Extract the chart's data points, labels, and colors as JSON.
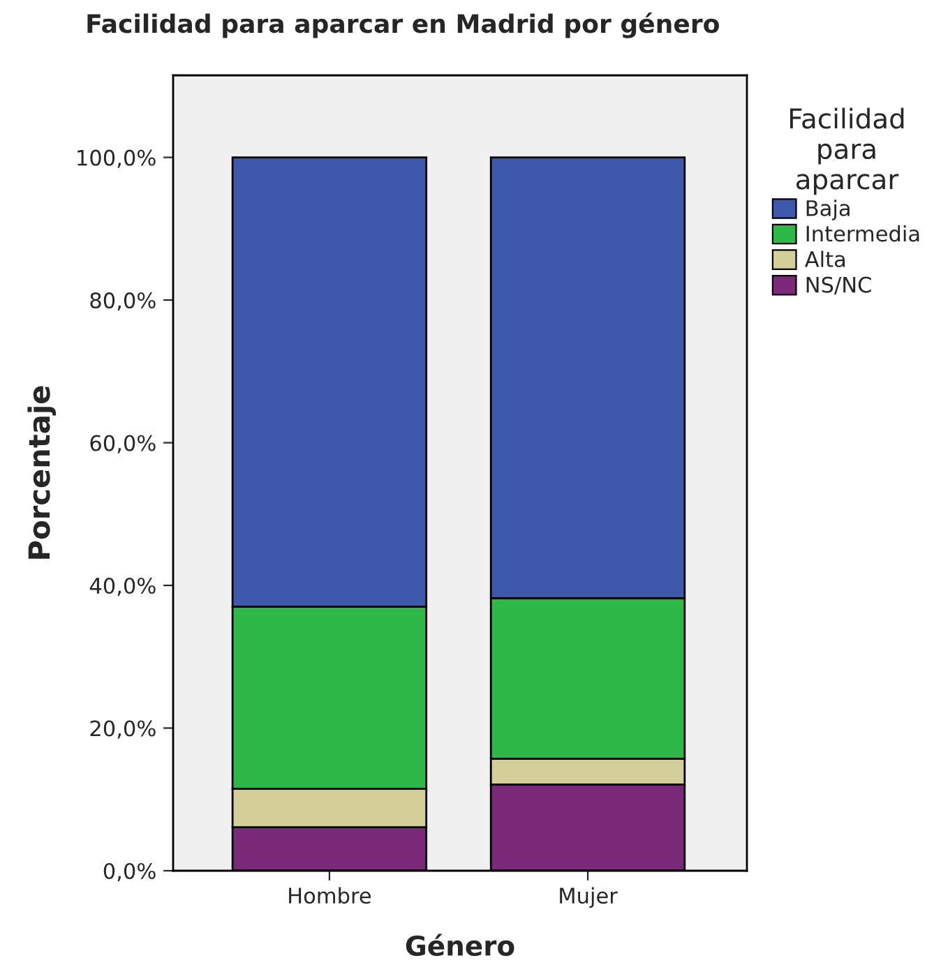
{
  "chart_data": {
    "type": "bar",
    "title": "Facilidad para aparcar en Madrid por género",
    "xlabel": "Género",
    "ylabel": "Porcentaje",
    "legend_title": "Facilidad\npara\naparcar",
    "categories": [
      "Hombre",
      "Mujer"
    ],
    "stacked": true,
    "series": [
      {
        "name": "NS/NC",
        "color": "#7b2a7a",
        "values": [
          6.1,
          12.1
        ]
      },
      {
        "name": "Alta",
        "color": "#d4cf98",
        "values": [
          5.4,
          3.6
        ]
      },
      {
        "name": "Intermedia",
        "color": "#2eb848",
        "values": [
          25.5,
          22.5
        ]
      },
      {
        "name": "Baja",
        "color": "#3e58ac",
        "values": [
          63.0,
          61.8
        ]
      }
    ],
    "ylim": [
      0,
      111.5
    ],
    "yticks": [
      {
        "value": 0,
        "label": "0,0%"
      },
      {
        "value": 20,
        "label": "20,0%"
      },
      {
        "value": 40,
        "label": "40,0%"
      },
      {
        "value": 60,
        "label": "60,0%"
      },
      {
        "value": 80,
        "label": "80,0%"
      },
      {
        "value": 100,
        "label": "100,0%"
      }
    ],
    "grid": false,
    "legend": "right"
  }
}
